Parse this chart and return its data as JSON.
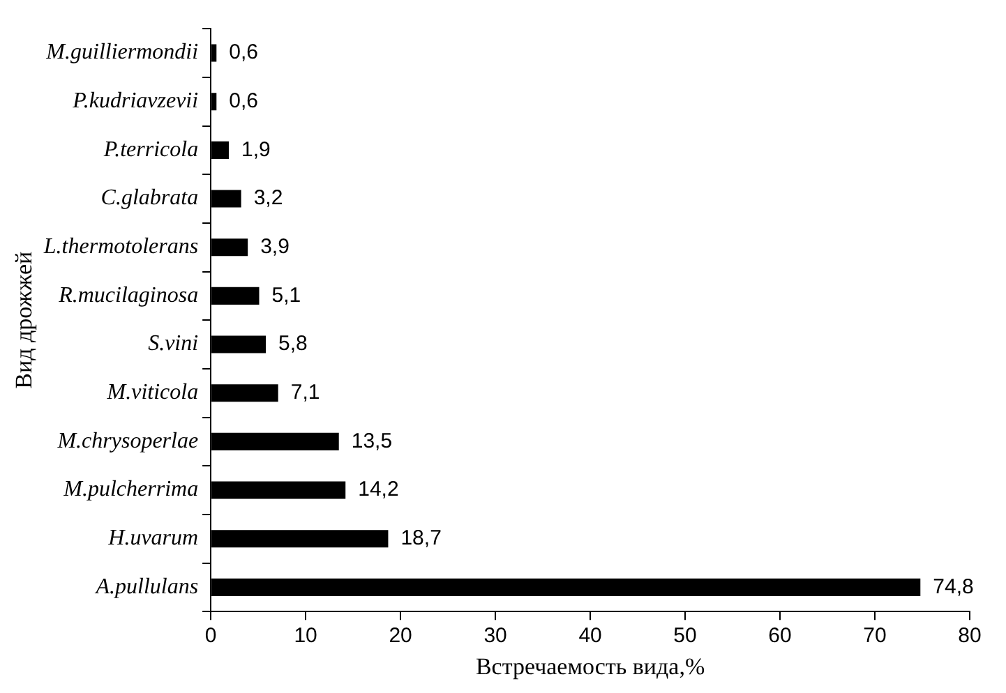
{
  "chart_data": {
    "type": "bar",
    "orientation": "horizontal",
    "xlabel": "Встречаемость вида,%",
    "ylabel": "Вид дрожжей",
    "categories": [
      "M.guilliermondii",
      "P.kudriavzevii",
      "P.terricola",
      "C.glabrata",
      "L.thermotolerans",
      "R.mucilaginosa",
      "S.vini",
      "M.viticola",
      "M.chrysoperlae",
      "M.pulcherrima",
      "H.uvarum",
      "A.pullulans"
    ],
    "values": [
      0.6,
      0.6,
      1.9,
      3.2,
      3.9,
      5.1,
      5.8,
      7.1,
      13.5,
      14.2,
      18.7,
      74.8
    ],
    "value_labels": [
      "0,6",
      "0,6",
      "1,9",
      "3,2",
      "3,9",
      "5,1",
      "5,8",
      "7,1",
      "13,5",
      "14,2",
      "18,7",
      "74,8"
    ],
    "color": "#000000",
    "xlim": [
      0,
      80
    ],
    "xticks": [
      0,
      10,
      20,
      30,
      40,
      50,
      60,
      70,
      80
    ],
    "grid": false,
    "legend": false
  }
}
